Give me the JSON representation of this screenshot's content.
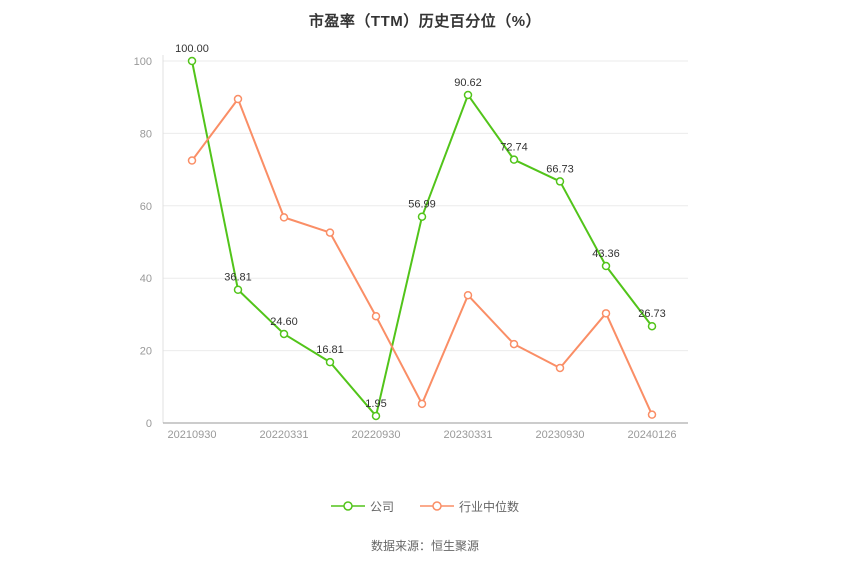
{
  "title": "市盈率（TTM）历史百分位（%）",
  "footer": "数据来源：恒生聚源",
  "colors": {
    "company": "#52c41a",
    "industry": "#fa8e66",
    "axis_line": "#999999",
    "y_axis_line": "#e0e0e0",
    "gridline": "#ebebeb",
    "tick_text": "#999999",
    "label_text": "#333333",
    "title_text": "#333333"
  },
  "legend": [
    {
      "label": "公司",
      "color": "#52c41a"
    },
    {
      "label": "行业中位数",
      "color": "#fa8e66"
    }
  ],
  "chart_data": {
    "type": "line",
    "title": "市盈率（TTM）历史百分位（%）",
    "xlabel": "",
    "ylabel": "",
    "ylim": [
      0,
      100
    ],
    "y_ticks": [
      0,
      20,
      40,
      60,
      80,
      100
    ],
    "grid": true,
    "legend_position": "bottom",
    "x_tick_labels": [
      "20210930",
      "20220331",
      "20220930",
      "20230331",
      "20230930",
      "20240126"
    ],
    "x_tick_point_indices": [
      0,
      2,
      4,
      6,
      8,
      10
    ],
    "series": [
      {
        "name": "公司",
        "color": "#52c41a",
        "values": [
          100.0,
          36.81,
          24.6,
          16.81,
          1.95,
          56.99,
          90.62,
          72.74,
          66.73,
          43.36,
          26.73
        ],
        "labels": [
          "100.00",
          "36.81",
          "24.60",
          "16.81",
          "1.95",
          "56.99",
          "90.62",
          "72.74",
          "66.73",
          "43.36",
          "26.73"
        ],
        "show_labels": true
      },
      {
        "name": "行业中位数",
        "color": "#fa8e66",
        "values": [
          72.5,
          89.5,
          56.8,
          52.6,
          29.5,
          5.3,
          35.3,
          21.8,
          15.2,
          30.3,
          2.3
        ],
        "labels": [],
        "show_labels": false
      }
    ]
  }
}
